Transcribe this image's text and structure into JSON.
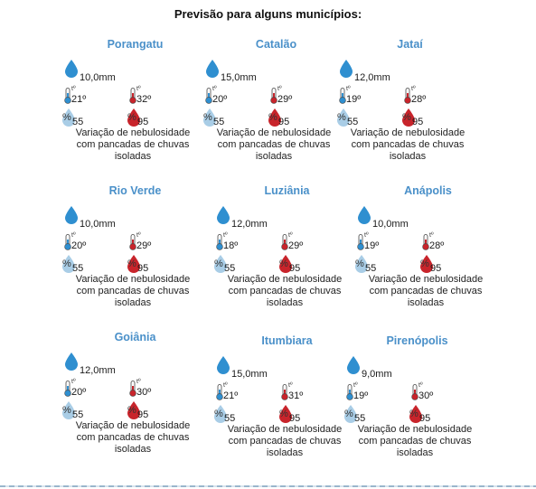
{
  "title": "Previsão para alguns municípios:",
  "colors": {
    "city_name": "#4a90c9",
    "drop": "#2f8fd0",
    "cold": "#2f8fd0",
    "hot": "#c8242b",
    "hum_low": "#a9cde6",
    "hum_high": "#c8242b"
  },
  "icons": {
    "rain": "water-drop-icon",
    "min_temp": "thermometer-cold-icon",
    "max_temp": "thermometer-hot-icon",
    "min_humidity": "humidity-drop-light-icon",
    "max_humidity": "humidity-drop-red-icon"
  },
  "temp_superscript": "tº",
  "pct_symbol": "%",
  "cities": [
    {
      "name": "Porangatu",
      "rain": "10,0mm",
      "tmin": "21º",
      "tmax": "32º",
      "hmin": "55",
      "hmax": "95",
      "desc": [
        "Variação de nebulosidade",
        "com  pancadas de chuvas",
        "isoladas"
      ]
    },
    {
      "name": "Catalão",
      "rain": "15,0mm",
      "tmin": "20º",
      "tmax": "29º",
      "hmin": "55",
      "hmax": "95",
      "desc": [
        "Variação de nebulosidade",
        "com  pancadas de chuvas",
        "isoladas"
      ]
    },
    {
      "name": "Jataí",
      "rain": "12,0mm",
      "tmin": "19º",
      "tmax": "28º",
      "hmin": "55",
      "hmax": "95",
      "desc": [
        "Variação de nebulosidade",
        "com  pancadas de chuvas",
        "isoladas"
      ]
    },
    {
      "name": "Rio Verde",
      "rain": "10,0mm",
      "tmin": "20º",
      "tmax": "29º",
      "hmin": "55",
      "hmax": "95",
      "desc": [
        "Variação de nebulosidade",
        "com  pancadas de chuvas",
        "isoladas"
      ]
    },
    {
      "name": "Luziânia",
      "rain": "12,0mm",
      "tmin": "18º",
      "tmax": "29º",
      "hmin": "55",
      "hmax": "95",
      "desc": [
        "Variação de nebulosidade",
        "com  pancadas de chuvas",
        "isoladas"
      ]
    },
    {
      "name": "Anápolis",
      "rain": "10,0mm",
      "tmin": "19º",
      "tmax": "28º",
      "hmin": "55",
      "hmax": "95",
      "desc": [
        "Variação de nebulosidade",
        "com  pancadas de chuvas",
        "isoladas"
      ]
    },
    {
      "name": "Goiânia",
      "rain": "12,0mm",
      "tmin": "20º",
      "tmax": "30º",
      "hmin": "55",
      "hmax": "95",
      "desc": [
        "Variação de nebulosidade",
        "com  pancadas de chuvas",
        "isoladas"
      ]
    },
    {
      "name": "Itumbiara",
      "rain": "15,0mm",
      "tmin": "21º",
      "tmax": "31º",
      "hmin": "55",
      "hmax": "95",
      "desc": [
        "Variação de nebulosidade",
        "com  pancadas de chuvas",
        "isoladas"
      ]
    },
    {
      "name": "Pirenópolis",
      "rain": "9,0mm",
      "tmin": "19º",
      "tmax": "30º",
      "hmin": "55",
      "hmax": "95",
      "desc": [
        "Variação de nebulosidade",
        "com  pancadas de chuvas",
        "isoladas"
      ]
    }
  ]
}
